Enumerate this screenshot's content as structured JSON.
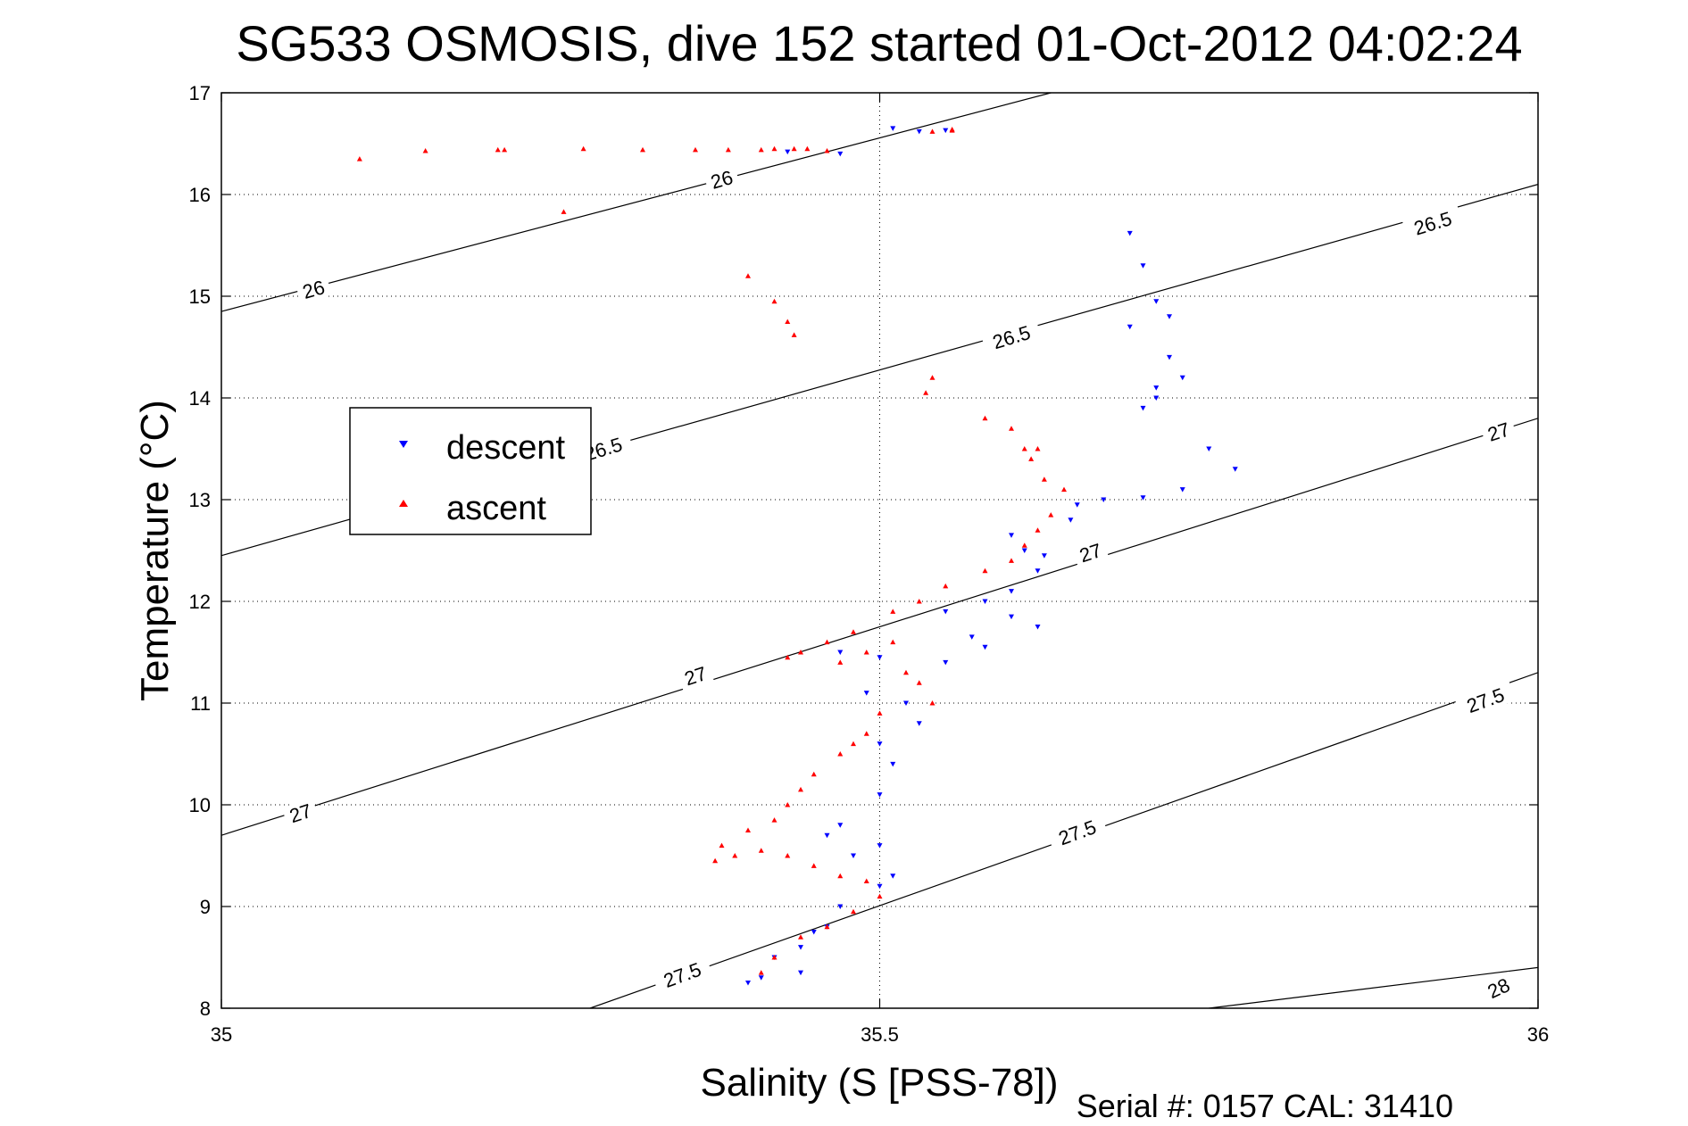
{
  "chart_data": {
    "type": "scatter",
    "title": "SG533 OSMOSIS, dive 152 started 01-Oct-2012 04:02:24",
    "xlabel": "Salinity (S [PSS-78])",
    "ylabel": "Temperature (°C)",
    "xlim": [
      35,
      36
    ],
    "ylim": [
      8,
      17
    ],
    "x_ticks": [
      35,
      35.5,
      36
    ],
    "y_ticks": [
      8,
      9,
      10,
      11,
      12,
      13,
      14,
      15,
      16,
      17
    ],
    "grid": true,
    "legend_position": "upper-left",
    "contours": [
      {
        "level": 26,
        "label": "26",
        "points": [
          [
            35.0,
            14.85
          ],
          [
            35.63,
            17.0
          ]
        ]
      },
      {
        "level": 26.5,
        "label": "26.5",
        "points": [
          [
            35.0,
            12.45
          ],
          [
            36.0,
            16.1
          ]
        ]
      },
      {
        "level": 27,
        "label": "27",
        "points": [
          [
            35.0,
            9.7
          ],
          [
            36.0,
            13.8
          ]
        ]
      },
      {
        "level": 27.5,
        "label": "27.5",
        "points": [
          [
            35.28,
            8.0
          ],
          [
            36.0,
            11.3
          ]
        ]
      },
      {
        "level": 28,
        "label": "28",
        "points": [
          [
            35.75,
            8.0
          ],
          [
            36.0,
            8.4
          ]
        ]
      }
    ],
    "contour_labels": [
      {
        "text": "26",
        "x": 35.38,
        "y": 16.15,
        "angle": -16
      },
      {
        "text": "26",
        "x": 35.07,
        "y": 15.07,
        "angle": -16
      },
      {
        "text": "26.5",
        "x": 35.92,
        "y": 15.72,
        "angle": -17
      },
      {
        "text": "26.5",
        "x": 35.6,
        "y": 14.6,
        "angle": -17
      },
      {
        "text": "26.5",
        "x": 35.29,
        "y": 13.5,
        "angle": -17
      },
      {
        "text": "27",
        "x": 35.97,
        "y": 13.67,
        "angle": -18
      },
      {
        "text": "27",
        "x": 35.66,
        "y": 12.48,
        "angle": -18
      },
      {
        "text": "27",
        "x": 35.36,
        "y": 11.27,
        "angle": -18
      },
      {
        "text": "27",
        "x": 35.06,
        "y": 9.92,
        "angle": -18
      },
      {
        "text": "27.5",
        "x": 35.96,
        "y": 11.03,
        "angle": -20
      },
      {
        "text": "27.5",
        "x": 35.65,
        "y": 9.73,
        "angle": -20
      },
      {
        "text": "27.5",
        "x": 35.35,
        "y": 8.33,
        "angle": -20
      },
      {
        "text": "28",
        "x": 35.97,
        "y": 8.2,
        "angle": -25
      }
    ],
    "series": [
      {
        "name": "descent",
        "color": "#0000ff",
        "marker": "triangle-down",
        "x": [
          35.51,
          35.53,
          35.55,
          35.47,
          35.43,
          35.69,
          35.7,
          35.71,
          35.72,
          35.69,
          35.71,
          35.73,
          35.72,
          35.7,
          35.71,
          35.75,
          35.77,
          35.73,
          35.7,
          35.67,
          35.65,
          35.645,
          35.6,
          35.61,
          35.625,
          35.62,
          35.6,
          35.58,
          35.55,
          35.6,
          35.57,
          35.62,
          35.58,
          35.55,
          35.5,
          35.47,
          35.49,
          35.52,
          35.53,
          35.5,
          35.51,
          35.5,
          35.47,
          35.5,
          35.46,
          35.48,
          35.51,
          35.5,
          35.47,
          35.46,
          35.45,
          35.44,
          35.42,
          35.41,
          35.4,
          35.44
        ],
        "y": [
          16.65,
          16.62,
          16.63,
          16.4,
          16.42,
          15.62,
          15.3,
          14.95,
          14.8,
          14.7,
          14.1,
          14.2,
          14.4,
          13.9,
          14.0,
          13.5,
          13.3,
          13.1,
          13.02,
          13.0,
          12.95,
          12.8,
          12.65,
          12.5,
          12.45,
          12.3,
          12.1,
          12.0,
          11.9,
          11.85,
          11.65,
          11.75,
          11.55,
          11.4,
          11.45,
          11.5,
          11.1,
          11.0,
          10.8,
          10.6,
          10.4,
          10.1,
          9.8,
          9.6,
          9.7,
          9.5,
          9.3,
          9.2,
          9.0,
          8.8,
          8.75,
          8.6,
          8.5,
          8.3,
          8.25,
          8.35
        ]
      },
      {
        "name": "ascent",
        "color": "#ff0000",
        "marker": "triangle-up",
        "x": [
          35.105,
          35.155,
          35.21,
          35.215,
          35.275,
          35.32,
          35.36,
          35.385,
          35.41,
          35.42,
          35.435,
          35.445,
          35.46,
          35.54,
          35.555,
          35.555,
          35.26,
          35.4,
          35.42,
          35.43,
          35.435,
          35.535,
          35.54,
          35.58,
          35.6,
          35.61,
          35.615,
          35.62,
          35.625,
          35.64,
          35.63,
          35.62,
          35.61,
          35.6,
          35.58,
          35.55,
          35.53,
          35.51,
          35.48,
          35.46,
          35.44,
          35.43,
          35.47,
          35.49,
          35.51,
          35.52,
          35.53,
          35.54,
          35.5,
          35.49,
          35.48,
          35.47,
          35.45,
          35.44,
          35.43,
          35.42,
          35.4,
          35.38,
          35.375,
          35.39,
          35.41,
          35.43,
          35.45,
          35.47,
          35.49,
          35.5,
          35.48,
          35.46,
          35.44,
          35.42,
          35.41
        ],
        "y": [
          16.35,
          16.43,
          16.44,
          16.44,
          16.45,
          16.44,
          16.44,
          16.44,
          16.44,
          16.45,
          16.45,
          16.45,
          16.43,
          16.62,
          16.64,
          16.63,
          15.83,
          15.2,
          14.95,
          14.75,
          14.62,
          14.05,
          14.2,
          13.8,
          13.7,
          13.5,
          13.4,
          13.5,
          13.2,
          13.1,
          12.85,
          12.7,
          12.55,
          12.4,
          12.3,
          12.15,
          12.0,
          11.9,
          11.7,
          11.6,
          11.5,
          11.45,
          11.4,
          11.5,
          11.6,
          11.3,
          11.2,
          11.0,
          10.9,
          10.7,
          10.6,
          10.5,
          10.3,
          10.15,
          10.0,
          9.85,
          9.75,
          9.6,
          9.45,
          9.5,
          9.55,
          9.5,
          9.4,
          9.3,
          9.25,
          9.1,
          8.95,
          8.8,
          8.7,
          8.5,
          8.35
        ]
      }
    ]
  },
  "legend": {
    "items": [
      {
        "label": "descent",
        "color": "#0000ff"
      },
      {
        "label": "ascent",
        "color": "#ff0000"
      }
    ]
  },
  "footer": {
    "serial": "Serial #: 0157  CAL: 31410"
  }
}
